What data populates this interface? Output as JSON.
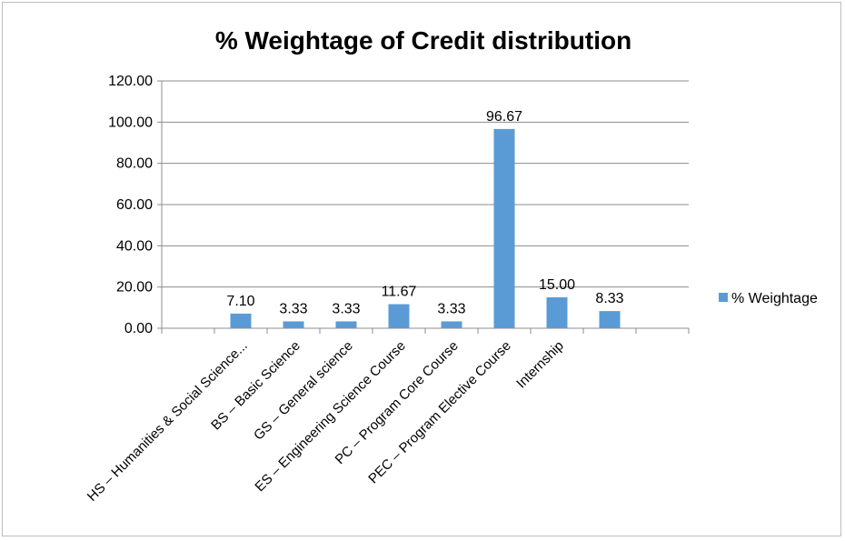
{
  "chart_data": {
    "type": "bar",
    "title": "% Weightage of Credit distribution",
    "xlabel": "",
    "ylabel": "",
    "ylim": [
      0,
      120
    ],
    "y_ticks": [
      "0.00",
      "20.00",
      "40.00",
      "60.00",
      "80.00",
      "100.00",
      "120.00"
    ],
    "categories": [
      "",
      "HS – Humanities & Social Science...",
      "BS – Basic Science",
      "GS – General science",
      "ES – Engineering Science Course",
      "PC – Program Core Course",
      "PEC – Program Elective Course",
      "Internship",
      "",
      ""
    ],
    "series": [
      {
        "name": "% Weightage",
        "color": "#5b9bd5",
        "values": [
          null,
          7.1,
          3.33,
          3.33,
          11.67,
          3.33,
          96.67,
          15.0,
          8.33,
          null
        ],
        "labels": [
          "",
          "7.10",
          "3.33",
          "3.33",
          "11.67",
          "3.33",
          "96.67",
          "15.00",
          "8.33",
          ""
        ]
      }
    ],
    "grid": true,
    "legend_position": "right"
  }
}
